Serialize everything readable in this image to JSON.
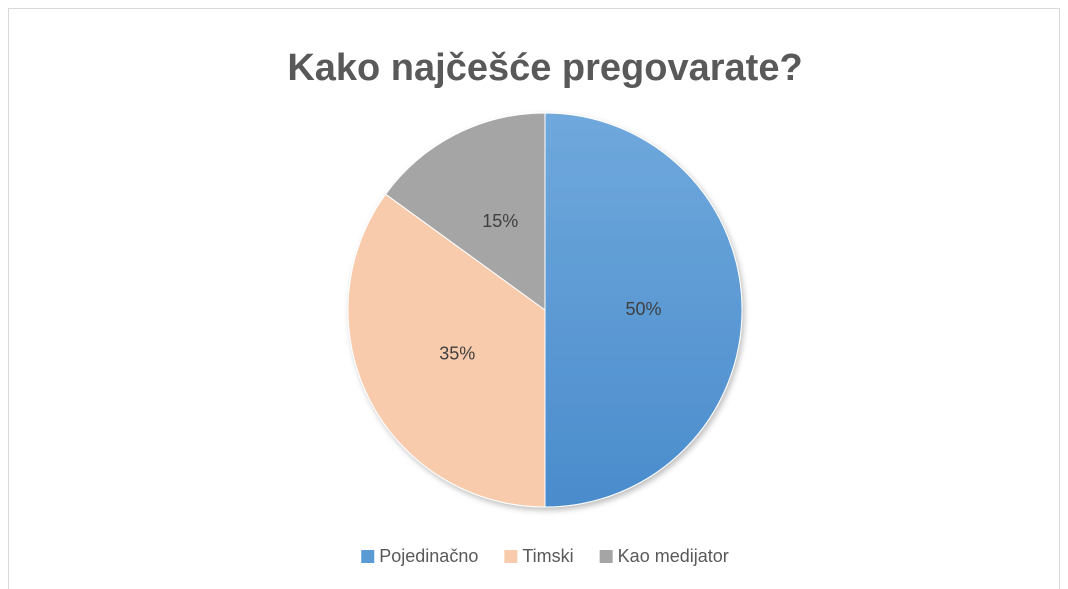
{
  "chart_data": {
    "type": "pie",
    "title": "Kako najčešće pregovarate?",
    "categories": [
      "Pojedinačno",
      "Timski",
      "Kao medijator"
    ],
    "values": [
      50,
      35,
      15
    ],
    "value_labels": [
      "50%",
      "35%",
      "15%"
    ],
    "colors": [
      "#5b9bd5",
      "#f8cbad",
      "#a5a5a5"
    ],
    "legend": "bottom"
  }
}
